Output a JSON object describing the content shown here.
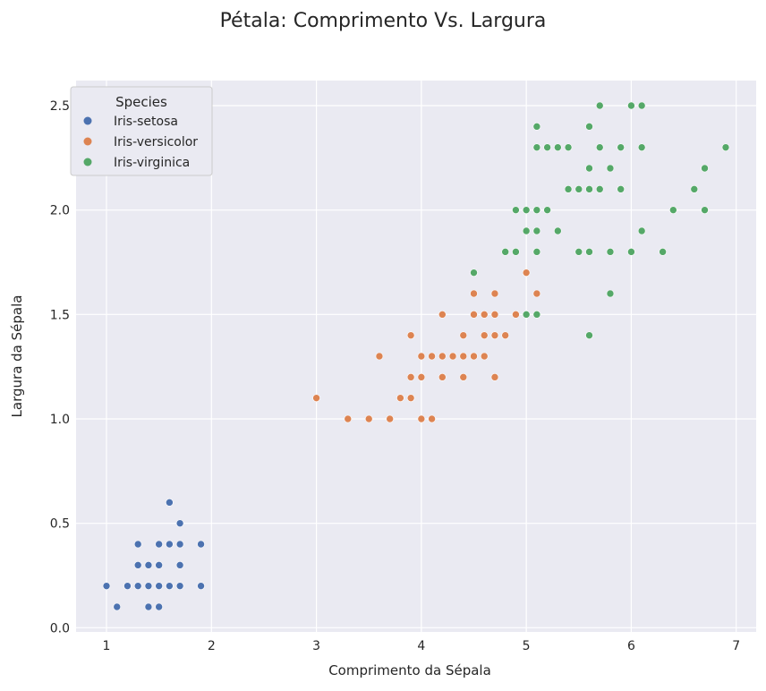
{
  "chart_data": {
    "type": "scatter",
    "title": "Pétala: Comprimento Vs. Largura",
    "xlabel": "Comprimento da Sépala",
    "ylabel": "Largura da Sépala",
    "xlim": [
      0.71,
      7.19
    ],
    "ylim": [
      -0.02,
      2.62
    ],
    "xticks": [
      1,
      2,
      3,
      4,
      5,
      6,
      7
    ],
    "yticks": [
      "0.0",
      "0.5",
      "1.0",
      "1.5",
      "2.0",
      "2.5"
    ],
    "grid": true,
    "legend": {
      "title": "Species",
      "placement": "top-left"
    },
    "series": [
      {
        "name": "Iris-setosa",
        "color": "#4c72b0",
        "points": [
          [
            1.0,
            0.2
          ],
          [
            1.1,
            0.1
          ],
          [
            1.2,
            0.2
          ],
          [
            1.3,
            0.2
          ],
          [
            1.3,
            0.3
          ],
          [
            1.3,
            0.4
          ],
          [
            1.4,
            0.1
          ],
          [
            1.4,
            0.2
          ],
          [
            1.4,
            0.3
          ],
          [
            1.5,
            0.1
          ],
          [
            1.5,
            0.2
          ],
          [
            1.5,
            0.3
          ],
          [
            1.5,
            0.4
          ],
          [
            1.6,
            0.2
          ],
          [
            1.6,
            0.4
          ],
          [
            1.6,
            0.6
          ],
          [
            1.7,
            0.2
          ],
          [
            1.7,
            0.3
          ],
          [
            1.7,
            0.4
          ],
          [
            1.7,
            0.5
          ],
          [
            1.9,
            0.2
          ],
          [
            1.9,
            0.4
          ]
        ]
      },
      {
        "name": "Iris-versicolor",
        "color": "#dd8452",
        "points": [
          [
            3.0,
            1.1
          ],
          [
            3.3,
            1.0
          ],
          [
            3.5,
            1.0
          ],
          [
            3.6,
            1.3
          ],
          [
            3.7,
            1.0
          ],
          [
            3.8,
            1.1
          ],
          [
            3.9,
            1.1
          ],
          [
            3.9,
            1.2
          ],
          [
            3.9,
            1.4
          ],
          [
            4.0,
            1.0
          ],
          [
            4.0,
            1.2
          ],
          [
            4.0,
            1.3
          ],
          [
            4.1,
            1.0
          ],
          [
            4.1,
            1.3
          ],
          [
            4.2,
            1.2
          ],
          [
            4.2,
            1.3
          ],
          [
            4.2,
            1.5
          ],
          [
            4.3,
            1.3
          ],
          [
            4.4,
            1.2
          ],
          [
            4.4,
            1.3
          ],
          [
            4.4,
            1.4
          ],
          [
            4.5,
            1.3
          ],
          [
            4.5,
            1.5
          ],
          [
            4.5,
            1.6
          ],
          [
            4.6,
            1.3
          ],
          [
            4.6,
            1.4
          ],
          [
            4.6,
            1.5
          ],
          [
            4.7,
            1.2
          ],
          [
            4.7,
            1.4
          ],
          [
            4.7,
            1.5
          ],
          [
            4.7,
            1.6
          ],
          [
            4.8,
            1.4
          ],
          [
            4.9,
            1.5
          ],
          [
            5.0,
            1.7
          ],
          [
            5.1,
            1.6
          ]
        ]
      },
      {
        "name": "Iris-virginica",
        "color": "#55a868",
        "points": [
          [
            4.5,
            1.7
          ],
          [
            4.8,
            1.8
          ],
          [
            4.9,
            1.8
          ],
          [
            4.9,
            2.0
          ],
          [
            5.0,
            1.5
          ],
          [
            5.0,
            1.9
          ],
          [
            5.0,
            2.0
          ],
          [
            5.1,
            1.5
          ],
          [
            5.1,
            1.8
          ],
          [
            5.1,
            1.9
          ],
          [
            5.1,
            2.0
          ],
          [
            5.1,
            2.3
          ],
          [
            5.1,
            2.4
          ],
          [
            5.2,
            2.0
          ],
          [
            5.2,
            2.3
          ],
          [
            5.3,
            1.9
          ],
          [
            5.3,
            2.3
          ],
          [
            5.4,
            2.1
          ],
          [
            5.4,
            2.3
          ],
          [
            5.5,
            1.8
          ],
          [
            5.5,
            2.1
          ],
          [
            5.6,
            1.4
          ],
          [
            5.6,
            1.8
          ],
          [
            5.6,
            2.1
          ],
          [
            5.6,
            2.2
          ],
          [
            5.6,
            2.4
          ],
          [
            5.7,
            2.1
          ],
          [
            5.7,
            2.3
          ],
          [
            5.7,
            2.5
          ],
          [
            5.8,
            1.6
          ],
          [
            5.8,
            1.8
          ],
          [
            5.8,
            2.2
          ],
          [
            5.9,
            2.1
          ],
          [
            5.9,
            2.3
          ],
          [
            6.0,
            1.8
          ],
          [
            6.0,
            2.5
          ],
          [
            6.1,
            1.9
          ],
          [
            6.1,
            2.3
          ],
          [
            6.1,
            2.5
          ],
          [
            6.3,
            1.8
          ],
          [
            6.4,
            2.0
          ],
          [
            6.6,
            2.1
          ],
          [
            6.7,
            2.0
          ],
          [
            6.7,
            2.2
          ],
          [
            6.9,
            2.3
          ]
        ]
      }
    ]
  }
}
